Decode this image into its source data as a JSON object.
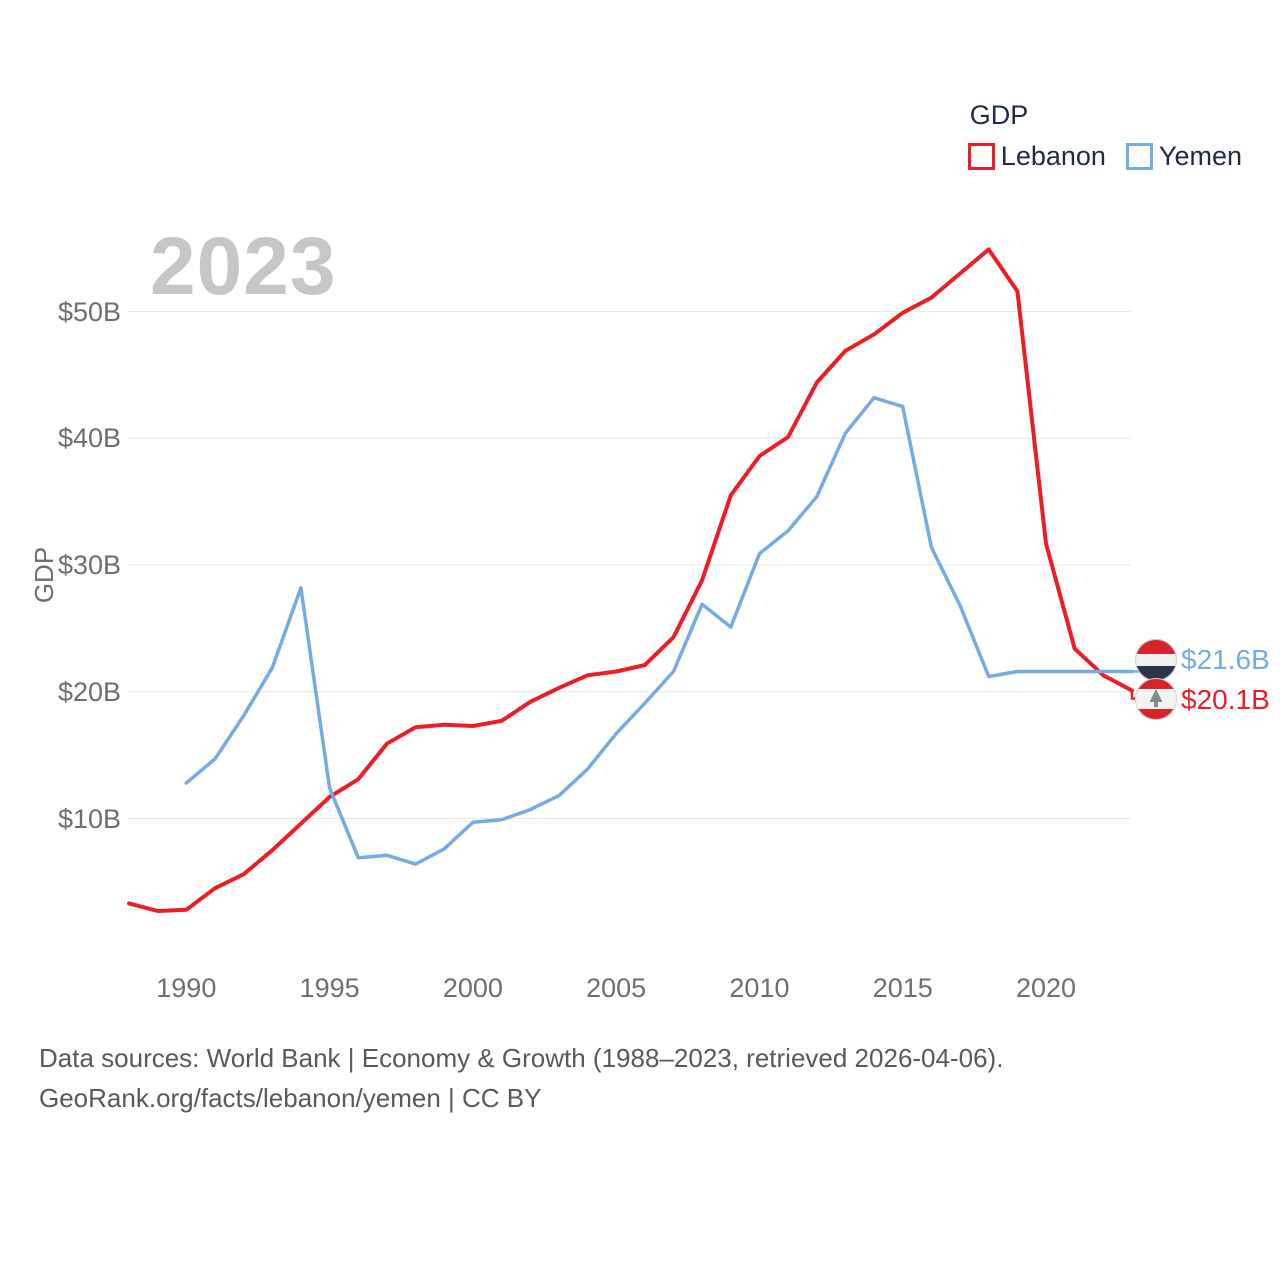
{
  "watermark": {
    "text": "2023",
    "color": "#c6c6c6"
  },
  "legend": {
    "title": "GDP",
    "items": [
      {
        "label": "Lebanon",
        "color": "#ee1c25"
      },
      {
        "label": "Yemen",
        "color": "#74abe2"
      }
    ]
  },
  "y_axis": {
    "title": "GDP",
    "ticks": [
      {
        "label": "$10B",
        "value": 10
      },
      {
        "label": "$20B",
        "value": 20
      },
      {
        "label": "$30B",
        "value": 30
      },
      {
        "label": "$40B",
        "value": 40
      },
      {
        "label": "$50B",
        "value": 50
      }
    ]
  },
  "x_axis": {
    "ticks": [
      {
        "label": "1990",
        "value": 1990
      },
      {
        "label": "1995",
        "value": 1995
      },
      {
        "label": "2000",
        "value": 2000
      },
      {
        "label": "2005",
        "value": 2005
      },
      {
        "label": "2010",
        "value": 2010
      },
      {
        "label": "2015",
        "value": 2015
      },
      {
        "label": "2020",
        "value": 2020
      }
    ]
  },
  "chart_data": {
    "type": "line",
    "title": "2023",
    "xlabel": "",
    "ylabel": "GDP",
    "xlim": [
      1988,
      2023
    ],
    "ylim": [
      0,
      57
    ],
    "grid": true,
    "legend_position": "top-right",
    "x": [
      1988,
      1989,
      1990,
      1991,
      1992,
      1993,
      1994,
      1995,
      1996,
      1997,
      1998,
      1999,
      2000,
      2001,
      2002,
      2003,
      2004,
      2005,
      2006,
      2007,
      2008,
      2009,
      2010,
      2011,
      2012,
      2013,
      2014,
      2015,
      2016,
      2017,
      2018,
      2019,
      2020,
      2021,
      2022,
      2023
    ],
    "series": [
      {
        "name": "Lebanon",
        "color": "#ee1c25",
        "unit": "billion USD",
        "values": [
          3.3,
          2.7,
          2.8,
          4.5,
          5.6,
          7.5,
          9.6,
          11.7,
          13.1,
          15.9,
          17.2,
          17.4,
          17.3,
          17.7,
          19.2,
          20.3,
          21.3,
          21.6,
          22.1,
          24.3,
          28.8,
          35.5,
          38.6,
          40.1,
          44.4,
          46.9,
          48.2,
          49.9,
          51.1,
          53.0,
          54.9,
          51.6,
          31.7,
          23.4,
          21.3,
          20.1
        ]
      },
      {
        "name": "Yemen",
        "color": "#74abe2",
        "unit": "billion USD",
        "values": [
          null,
          null,
          12.8,
          14.7,
          18.1,
          21.9,
          28.2,
          12.4,
          6.9,
          7.1,
          6.4,
          7.6,
          9.7,
          9.9,
          10.7,
          11.8,
          13.9,
          16.7,
          19.1,
          21.6,
          26.9,
          25.1,
          30.9,
          32.7,
          35.4,
          40.4,
          43.2,
          42.5,
          31.4,
          26.8,
          21.2,
          21.6,
          21.6,
          21.6,
          21.6,
          21.6
        ]
      }
    ],
    "end_labels": [
      {
        "series": "Yemen",
        "label": "$21.6B",
        "value": 21.6,
        "flag": "yemen-flag"
      },
      {
        "series": "Lebanon",
        "label": "$20.1B",
        "value": 20.1,
        "flag": "lebanon-flag"
      }
    ]
  },
  "flags": {
    "yemen": {
      "red": "#d8232a",
      "white": "#f0f0f0",
      "black": "#2b3448",
      "border": "#cfcfcf"
    },
    "lebanon": {
      "red": "#d8232a",
      "white": "#f2f2f2",
      "cedar": "#7f8e80",
      "border": "#cfcfcf"
    }
  },
  "footer": {
    "line1": "Data sources: World Bank | Economy & Growth (1988–2023, retrieved 2026-04-06).",
    "line2": "GeoRank.org/facts/lebanon/yemen | CC BY"
  },
  "grid_color": "#e8e8e8"
}
